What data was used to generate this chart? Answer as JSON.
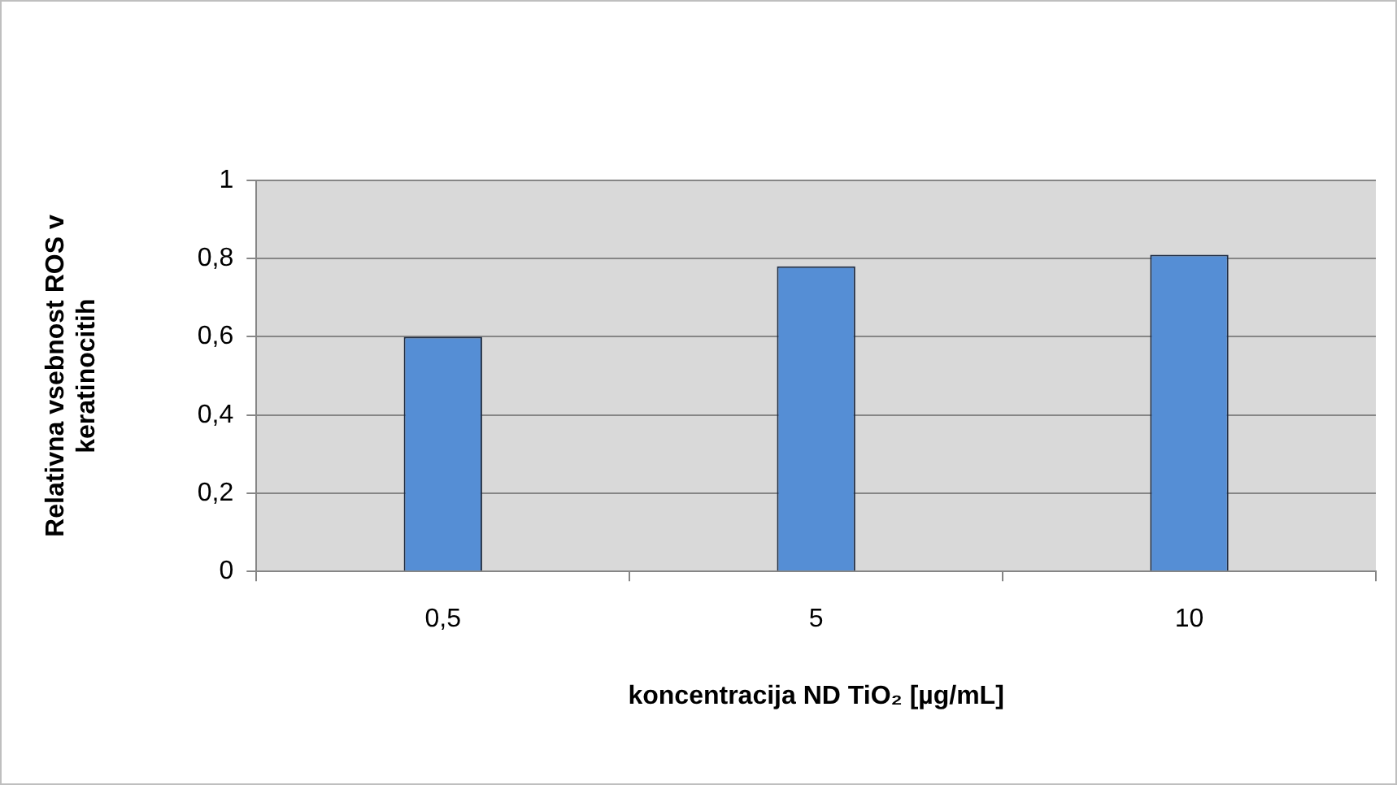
{
  "chart_data": {
    "type": "bar",
    "xlabel": "koncentracija ND TiO₂ [µg/mL]",
    "ylabel": "Relativna vsebnost ROS v keratinocitih",
    "categories": [
      "0,5",
      "5",
      "10"
    ],
    "values": [
      0.6,
      0.78,
      0.81
    ],
    "color": "#558ed5",
    "ylim": [
      0,
      1
    ],
    "yticks": [
      {
        "value": 0,
        "label": "0"
      },
      {
        "value": 0.2,
        "label": "0,2"
      },
      {
        "value": 0.4,
        "label": "0,4"
      },
      {
        "value": 0.6,
        "label": "0,6"
      },
      {
        "value": 0.8,
        "label": "0,8"
      },
      {
        "value": 1,
        "label": "1"
      }
    ],
    "grid": "y",
    "legend": false
  }
}
